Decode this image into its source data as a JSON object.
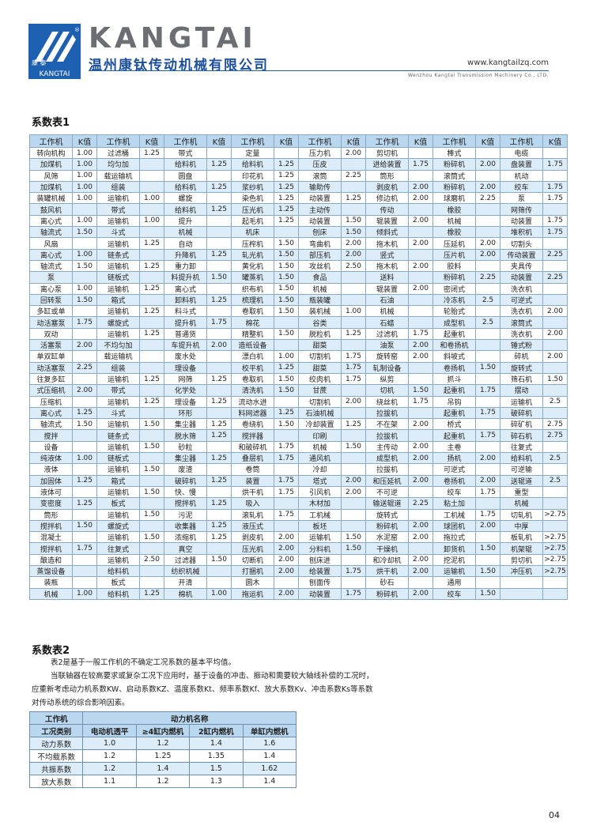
{
  "header": {
    "logo_text": "康 泰",
    "logo_sub": "KANGTAI",
    "brand": "KANGTAI",
    "company": "温州康钛传动机械有限公司",
    "website": "www.kangtailzq.com",
    "english_name": "Wenzhou Kangtai Transmission Machinery Co., LTD."
  },
  "table1": {
    "title": "系数表1",
    "header": [
      "工作机",
      "K值",
      "工作机",
      "K值",
      "工作机",
      "K值",
      "工作机",
      "K值",
      "工作机",
      "K值",
      "工作机",
      "K值",
      "工作机",
      "K值",
      "工作机",
      "K值"
    ],
    "rows": [
      [
        "转向机构",
        "1.00",
        "过滤桶",
        "1.25",
        "带式",
        null,
        "定量",
        null,
        "压力机",
        "2.00",
        "剪切机",
        null,
        "棒式",
        null,
        "电缆",
        null
      ],
      [
        "加煤机",
        "1.00",
        "均匀加",
        null,
        "给料机",
        "1.25",
        "给料机",
        "1.25",
        "压皮",
        null,
        "进给装置",
        "1.75",
        "粉碎机",
        "2.00",
        "盘装置",
        "1.75"
      ],
      [
        "风筛",
        "1.00",
        "载运输机",
        null,
        "圆盘",
        null,
        "印花机",
        "1.25",
        "滚筒",
        "2.25",
        "筒形",
        null,
        "滚筒式",
        null,
        "机动",
        null
      ],
      [
        "加煤机",
        "1.00",
        "组装",
        null,
        "给料机",
        "1.25",
        "浆纱机",
        "1.25",
        "输助传",
        null,
        "剥皮机",
        "2.00",
        "粉碎机",
        "2.00",
        "绞车",
        "1.75"
      ],
      [
        "装罐机械",
        "1.00",
        "运输机",
        "1.00",
        "螺旋",
        null,
        "染色机",
        "1.25",
        "动装置",
        "1.25",
        "修边机",
        "2.00",
        "球磨机",
        "2.25",
        "泵",
        "1.75"
      ],
      [
        "鼓风机",
        null,
        "带式",
        null,
        "给料机",
        "1.25",
        "压光机",
        "1.25",
        "主动传",
        null,
        "传动",
        null,
        "橡胶",
        null,
        "网筛传",
        null
      ],
      [
        "离心式",
        "1.00",
        "运输机",
        "1.00",
        "提升",
        null,
        "起毛机",
        "1.25",
        "动装置",
        "1.50",
        "辊装置",
        "2.00",
        "机械",
        null,
        "动装置",
        "1.75"
      ],
      [
        "轴流式",
        "1.50",
        "斗式",
        null,
        "机械",
        null,
        "机床",
        null,
        "刨床",
        "1.50",
        "倾斜式",
        null,
        "橡胶",
        null,
        "堆积机",
        "1.75"
      ],
      [
        "风扇",
        null,
        "运输机",
        "1.25",
        "自动",
        null,
        "压榨机",
        "1.50",
        "弯曲机",
        "2.00",
        "拖木机",
        "2.00",
        "压延机",
        "2.00",
        "切割头",
        null
      ],
      [
        "离心式",
        "1.00",
        "链条式",
        null,
        "升降机",
        "1.25",
        "轧光机",
        "1.50",
        "部压机",
        "2.00",
        "竖式",
        null,
        "压片机",
        "2.00",
        "传动装置",
        "2.25"
      ],
      [
        "轴流式",
        "1.50",
        "运输机",
        "1.25",
        "重力卸",
        null,
        "黄化机",
        "1.50",
        "攻丝机",
        "2.50",
        "拖木机",
        "2.00",
        "胶料",
        null,
        "夹具传",
        null
      ],
      [
        "泵",
        null,
        "链板式",
        null,
        "料提升机",
        "1.50",
        "罐蒸机",
        "1.50",
        "食品",
        null,
        "送料",
        null,
        "粉碎机",
        "2.25",
        "动装置",
        "2.25"
      ],
      [
        "离心泵",
        "1.00",
        "运输机",
        "1.25",
        "离心式",
        null,
        "织布机",
        "1.50",
        "机械",
        null,
        "辊装置",
        "2.00",
        "密闭式",
        null,
        "洗衣机",
        null
      ],
      [
        "回转泵",
        "1.50",
        "箱式",
        null,
        "卸料机",
        "1.25",
        "梳理机",
        "1.50",
        "瓶装罐",
        null,
        "石油",
        null,
        "冷冻机",
        "2.5",
        "可逆式",
        null
      ],
      [
        "多缸或单",
        null,
        "运输机",
        "1.25",
        "料斗式",
        null,
        "卷取机",
        "1.50",
        "装机械",
        "1.00",
        "机械",
        null,
        "轮胎式",
        null,
        "洗衣机",
        "2.00"
      ],
      [
        "动活塞泵",
        "1.75",
        "螺旋式",
        null,
        "提升机",
        "1.75",
        "棉花",
        null,
        "谷类",
        null,
        "石蜡",
        null,
        "成型机",
        "2.5",
        "滚筒式",
        null
      ],
      [
        "双动",
        null,
        "运输机",
        "1.25",
        "普通货",
        null,
        "精整机",
        "1.50",
        "脱粒机",
        "1.25",
        "过滤机",
        "1.75",
        "起重机",
        null,
        "洗衣机",
        "2.00"
      ],
      [
        "活塞泵",
        "2.00",
        "不均匀加",
        null,
        "车提升机",
        "2.00",
        "造纸设备",
        null,
        "甜菜",
        null,
        "油泵",
        "2.00",
        "和卷扬机",
        null,
        "锤式粉",
        null
      ],
      [
        "单双缸单",
        null,
        "载运输机",
        null,
        "废水处",
        null,
        "漂白机",
        "1.00",
        "切割机",
        "1.75",
        "旋转窑",
        "2.00",
        "斜坡式",
        null,
        "碎机",
        "2.00"
      ],
      [
        "动活塞泵",
        "2.25",
        "组装",
        null,
        "理设备",
        null,
        "校平机",
        "1.25",
        "甜菜",
        "1.75",
        "轧制设备",
        null,
        "卷扬机",
        "1.50",
        "旋转式",
        null
      ],
      [
        "往复多缸",
        null,
        "运输机",
        "1.25",
        "网筛",
        "1.25",
        "卷取机",
        "1.50",
        "绞肉机",
        "1.75",
        "纵剪",
        null,
        "抓斗",
        null,
        "筛石机",
        "1.50"
      ],
      [
        "式压缩机",
        "2.00",
        "带式",
        null,
        "化学处",
        null,
        "清洗机",
        "1.50",
        "甘蔗",
        null,
        "切机",
        "1.50",
        "起重机",
        "1.75",
        "摆动",
        null
      ],
      [
        "压缩机",
        null,
        "运输机",
        "1.25",
        "理设备",
        "1.25",
        "流动水进",
        null,
        "切割机",
        "2.00",
        "绕丝机",
        "1.75",
        "吊钩",
        null,
        "运输机",
        "2.5"
      ],
      [
        "离心式",
        "1.25",
        "斗式",
        null,
        "环形",
        null,
        "料网滤器",
        "1.25",
        "石油机械",
        null,
        "拉拔机",
        null,
        "起重机",
        "1.75",
        "破碎机",
        null
      ],
      [
        "轴流式",
        "1.50",
        "运输机",
        "1.50",
        "集尘器",
        "1.25",
        "卷绕机",
        "1.50",
        "冷却装置",
        "1.25",
        "不在架",
        "2.00",
        "桥式",
        null,
        "碎矿机",
        "2.75"
      ],
      [
        "搅拌",
        null,
        "链条式",
        null,
        "脱水筛",
        "1.25",
        "搅拌器",
        null,
        "印刷",
        null,
        "拉拔机",
        null,
        "起重机",
        "1.75",
        "碎石机",
        "2.75"
      ],
      [
        "设备",
        null,
        "运输机",
        "1.50",
        "砂粒",
        null,
        "和破碎机",
        "1.75",
        "机械",
        "1.50",
        "主传动",
        "2.00",
        "主卷",
        null,
        "往复式",
        null
      ],
      [
        "纯液体",
        "1.00",
        "链板式",
        null,
        "集尘器",
        "1.25",
        "叠层机",
        "1.75",
        "通风机",
        null,
        "成型机",
        "2.00",
        "扬机",
        "2.00",
        "给料机",
        "2.5"
      ],
      [
        "液体",
        null,
        "运输机",
        "1.50",
        "废渣",
        null,
        "卷筒",
        null,
        "冷却",
        null,
        "拉拔机",
        null,
        "可逆式",
        null,
        "可逆输",
        null
      ],
      [
        "加固体",
        "1.25",
        "箱式",
        null,
        "破碎机",
        "1.25",
        "装置",
        "1.75",
        "塔式",
        "2.00",
        "和压延机",
        "2.00",
        "卷扬机",
        "2.00",
        "送辊道",
        "2.5"
      ],
      [
        "液体可",
        null,
        "运输机",
        "1.50",
        "快、慢",
        null,
        "烘干机",
        "1.75",
        "引风机",
        "2.00",
        "不可逆",
        null,
        "绞车",
        "1.75",
        "重型",
        null
      ],
      [
        "变密度",
        "1.25",
        "板式",
        null,
        "搅拌机",
        "1.25",
        "吸入",
        null,
        "木材加",
        null,
        "输送辊道",
        "2.25",
        "粘土加",
        null,
        "机械",
        null
      ],
      [
        "筒形",
        null,
        "运输机",
        "1.50",
        "污泥",
        null,
        "滚轧机",
        "1.75",
        "工机械",
        null,
        "旋转式",
        null,
        "工机械",
        "1.75",
        "切轧机",
        ">2.75"
      ],
      [
        "搅拌机",
        "1.50",
        "螺旋式",
        null,
        "收集器",
        "1.25",
        "液压式",
        null,
        "板坯",
        null,
        "粉碎机",
        "2.00",
        "球团机",
        "2.00",
        "中厚",
        null
      ],
      [
        "混凝土",
        null,
        "运输机",
        "1.50",
        "浓缩机",
        "1.25",
        "剥皮机",
        "2.00",
        "运输机",
        "1.50",
        "水泥窑",
        "2.00",
        "拖拉式",
        null,
        "板轧机",
        ">2.75"
      ],
      [
        "搅拌机",
        "1.75",
        "往复式",
        null,
        "真空",
        null,
        "压光机",
        "2.00",
        "分料机",
        "1.50",
        "干燥机",
        null,
        "卸货机",
        "1.50",
        "机架辊",
        ">2.75"
      ],
      [
        "酿造和",
        null,
        "运输机",
        "2.50",
        "过滤器",
        "1.50",
        "切断机",
        "2.00",
        "刨床进",
        null,
        "和冷却机",
        "2.00",
        "挖泥机",
        null,
        "剪切机",
        ">2.75"
      ],
      [
        "蒸馏设备",
        null,
        "给料机",
        null,
        "纺织机械",
        null,
        "打捆机",
        "2.00",
        "给装置",
        "1.75",
        "烘干机",
        "2.00",
        "运输机",
        "1.50",
        "冲压机",
        ">2.75"
      ],
      [
        "装瓶",
        null,
        "板式",
        null,
        "开清",
        null,
        "圆木",
        null,
        "刨面传",
        null,
        "砂石",
        null,
        "通用",
        null,
        null,
        null
      ],
      [
        "机械",
        "1.00",
        "给料机",
        "1.25",
        "棉机",
        "1.00",
        "拖运机",
        "2.00",
        "动装置",
        "1.75",
        "粉碎机",
        "2.00",
        "绞车",
        "1.50",
        null,
        null
      ]
    ]
  },
  "table2": {
    "title": "系数表2",
    "paragraphs": [
      "表2是基于一般工作机的不确定工况系数的基本平均值。",
      "当联轴器在较高要求或复杂工况下应用时，基于设备的冲击、振动和需要较大轴线补偿的工况时，应重新考虑动力机系数KW、启动系数KZ、温度系数Kt、频率系数Kf、放大系数Kv、冲击系数Ks等系数对传动系统的综合影响因素。"
    ],
    "header_top": [
      "工作机",
      "动力机名称"
    ],
    "header": [
      "工况类别",
      "电动机透平",
      "≥4缸内燃机",
      "2缸内燃机",
      "单缸内燃机"
    ],
    "rows": [
      [
        "动力系数",
        "1.0",
        "1.2",
        "1.4",
        "1.6"
      ],
      [
        "不均载系数",
        "1.2",
        "1.25",
        "1.35",
        "1.4"
      ],
      [
        "共振系数",
        "1.2",
        "1.4",
        "1.5",
        "1.62"
      ],
      [
        "放大系数",
        "1.1",
        "1.2",
        "1.3",
        "1.4"
      ]
    ]
  },
  "page_number": "04"
}
